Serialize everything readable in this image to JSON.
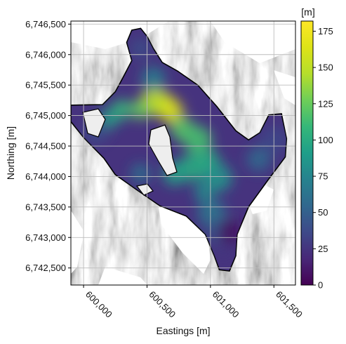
{
  "figure": {
    "xlabel": "Eastings [m]",
    "ylabel": "Northing [m]",
    "colorbar_unit": "[m]"
  },
  "chart_data": {
    "type": "heatmap",
    "description_type": "map",
    "xlabel": "Eastings [m]",
    "ylabel": "Northing [m]",
    "x_ticks": [
      600000,
      600500,
      601000,
      601500
    ],
    "x_tick_labels": [
      "600,000",
      "600,500",
      "601,000",
      "601,500"
    ],
    "y_ticks": [
      6742500,
      6743000,
      6743500,
      6744000,
      6744500,
      6745000,
      6745500,
      6746000,
      6746500
    ],
    "y_tick_labels": [
      "6,742,500",
      "6,743,000",
      "6,743,500",
      "6,744,000",
      "6,744,500",
      "6,745,000",
      "6,745,500",
      "6,746,000",
      "6,746,500"
    ],
    "xlim": [
      599900,
      601670
    ],
    "ylim": [
      6742220,
      6746550
    ],
    "grid": true,
    "basemap": "grayscale hillshade",
    "colormap": "viridis",
    "colorbar": {
      "label": "[m]",
      "range": [
        0,
        182
      ],
      "ticks": [
        0,
        25,
        50,
        75,
        100,
        125,
        150,
        175
      ],
      "tick_labels": [
        "0",
        "25",
        "50",
        "75",
        "100",
        "125",
        "150",
        "175"
      ]
    },
    "glacier_outline": [
      [
        600250,
        6745390
      ],
      [
        600150,
        6745180
      ],
      [
        599900,
        6745170
      ],
      [
        599900,
        6744900
      ],
      [
        600000,
        6744640
      ],
      [
        600160,
        6744300
      ],
      [
        600250,
        6744030
      ],
      [
        600420,
        6743780
      ],
      [
        600600,
        6743520
      ],
      [
        600810,
        6743350
      ],
      [
        600960,
        6743050
      ],
      [
        601030,
        6742700
      ],
      [
        601070,
        6742470
      ],
      [
        601150,
        6742450
      ],
      [
        601200,
        6742700
      ],
      [
        601210,
        6743050
      ],
      [
        601300,
        6743500
      ],
      [
        601460,
        6743960
      ],
      [
        601590,
        6744320
      ],
      [
        601600,
        6744620
      ],
      [
        601560,
        6745030
      ],
      [
        601460,
        6745010
      ],
      [
        601390,
        6744720
      ],
      [
        601300,
        6744600
      ],
      [
        601200,
        6744750
      ],
      [
        601050,
        6745150
      ],
      [
        600900,
        6745500
      ],
      [
        600740,
        6745730
      ],
      [
        600620,
        6745870
      ],
      [
        600550,
        6746100
      ],
      [
        600500,
        6746300
      ],
      [
        600450,
        6746430
      ],
      [
        600380,
        6746400
      ],
      [
        600340,
        6746200
      ],
      [
        600380,
        6745900
      ],
      [
        600310,
        6745620
      ]
    ],
    "thickness_samples": [
      {
        "x": 600640,
        "y": 6745200,
        "value": 180
      },
      {
        "x": 600690,
        "y": 6745070,
        "value": 165
      },
      {
        "x": 600560,
        "y": 6745230,
        "value": 150
      },
      {
        "x": 600450,
        "y": 6745100,
        "value": 125
      },
      {
        "x": 600780,
        "y": 6744780,
        "value": 120
      },
      {
        "x": 600900,
        "y": 6744600,
        "value": 115
      },
      {
        "x": 600300,
        "y": 6745100,
        "value": 110
      },
      {
        "x": 600980,
        "y": 6744250,
        "value": 100
      },
      {
        "x": 600860,
        "y": 6744150,
        "value": 100
      },
      {
        "x": 600200,
        "y": 6744950,
        "value": 95
      },
      {
        "x": 600720,
        "y": 6744050,
        "value": 95
      },
      {
        "x": 601060,
        "y": 6743980,
        "value": 85
      },
      {
        "x": 600950,
        "y": 6743750,
        "value": 80
      },
      {
        "x": 600550,
        "y": 6745600,
        "value": 70
      },
      {
        "x": 601010,
        "y": 6743400,
        "value": 65
      },
      {
        "x": 600450,
        "y": 6744050,
        "value": 60
      },
      {
        "x": 601380,
        "y": 6744280,
        "value": 55
      },
      {
        "x": 601080,
        "y": 6743100,
        "value": 45
      },
      {
        "x": 600450,
        "y": 6746100,
        "value": 40
      },
      {
        "x": 600100,
        "y": 6744750,
        "value": 40
      },
      {
        "x": 601500,
        "y": 6744600,
        "value": 35
      },
      {
        "x": 601100,
        "y": 6742800,
        "value": 25
      },
      {
        "x": 601150,
        "y": 6743100,
        "value": 5
      }
    ]
  }
}
